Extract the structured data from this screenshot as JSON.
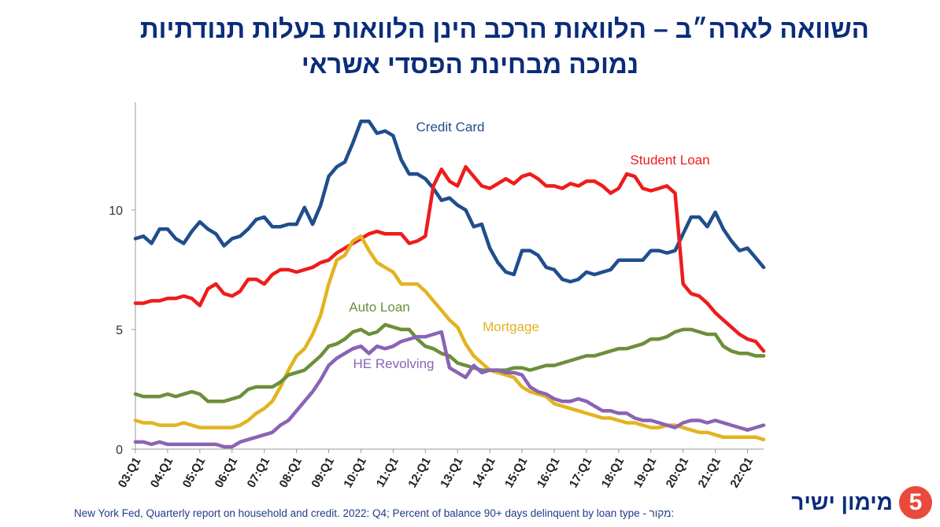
{
  "header": {
    "title_line1": "השוואה לארה״ב – הלוואות הרכב הינן הלוואות בעלות תנודתיות",
    "title_line2": "נמוכה מבחינת הפסדי אשראי"
  },
  "footer": {
    "source_text": "New York Fed, Quarterly report on household and credit. 2022: Q4; Percent of balance 90+ days delinquent by loan type - מקור:",
    "logo_text": "מימון ישיר",
    "logo_mark": "5"
  },
  "chart_data": {
    "type": "line",
    "x_start_year": 2003,
    "x_start_quarter": 1,
    "x_tick_labels": [
      "03:Q1",
      "04:Q1",
      "05:Q1",
      "06:Q1",
      "07:Q1",
      "08:Q1",
      "09:Q1",
      "10:Q1",
      "11:Q1",
      "12:Q1",
      "13:Q1",
      "14:Q1",
      "15:Q1",
      "16:Q1",
      "17:Q1",
      "18:Q1",
      "19:Q1",
      "20:Q1",
      "21:Q1",
      "22:Q1"
    ],
    "y_ticks": [
      0,
      5,
      10
    ],
    "ylim": [
      0,
      14.5
    ],
    "grid": false,
    "series": [
      {
        "name": "Credit Card",
        "color": "#1f4e8c",
        "values": [
          8.8,
          8.9,
          8.6,
          9.2,
          9.2,
          8.8,
          8.6,
          9.1,
          9.5,
          9.2,
          9.0,
          8.5,
          8.8,
          8.9,
          9.2,
          9.6,
          9.7,
          9.3,
          9.3,
          9.4,
          9.4,
          10.1,
          9.4,
          10.2,
          11.4,
          11.8,
          12.0,
          12.8,
          13.7,
          13.7,
          13.2,
          13.3,
          13.1,
          12.1,
          11.5,
          11.5,
          11.3,
          10.9,
          10.4,
          10.5,
          10.2,
          10.0,
          9.3,
          9.4,
          8.4,
          7.8,
          7.4,
          7.3,
          8.3,
          8.3,
          8.1,
          7.6,
          7.5,
          7.1,
          7.0,
          7.1,
          7.4,
          7.3,
          7.4,
          7.5,
          7.9,
          7.9,
          7.9,
          7.9,
          8.3,
          8.3,
          8.2,
          8.3,
          9.0,
          9.7,
          9.7,
          9.3,
          9.9,
          9.2,
          8.7,
          8.3,
          8.4,
          8.0,
          7.6
        ]
      },
      {
        "name": "Student Loan",
        "color": "#ee1c1c",
        "values": [
          6.1,
          6.1,
          6.2,
          6.2,
          6.3,
          6.3,
          6.4,
          6.3,
          6.0,
          6.7,
          6.9,
          6.5,
          6.4,
          6.6,
          7.1,
          7.1,
          6.9,
          7.3,
          7.5,
          7.5,
          7.4,
          7.5,
          7.6,
          7.8,
          7.9,
          8.2,
          8.4,
          8.6,
          8.8,
          9.0,
          9.1,
          9.0,
          9.0,
          9.0,
          8.6,
          8.7,
          8.9,
          11.0,
          11.7,
          11.2,
          11.0,
          11.8,
          11.4,
          11.0,
          10.9,
          11.1,
          11.3,
          11.1,
          11.4,
          11.5,
          11.3,
          11.0,
          11.0,
          10.9,
          11.1,
          11.0,
          11.2,
          11.2,
          11.0,
          10.7,
          10.9,
          11.5,
          11.4,
          10.9,
          10.8,
          10.9,
          11.0,
          10.7,
          6.9,
          6.5,
          6.4,
          6.1,
          5.7,
          5.4,
          5.1,
          4.8,
          4.6,
          4.5,
          4.1
        ]
      },
      {
        "name": "Mortgage",
        "color": "#e3b320",
        "values": [
          1.2,
          1.1,
          1.1,
          1.0,
          1.0,
          1.0,
          1.1,
          1.0,
          0.9,
          0.9,
          0.9,
          0.9,
          0.9,
          1.0,
          1.2,
          1.5,
          1.7,
          2.0,
          2.6,
          3.3,
          3.9,
          4.2,
          4.8,
          5.6,
          6.9,
          7.9,
          8.1,
          8.7,
          8.9,
          8.3,
          7.8,
          7.6,
          7.4,
          6.9,
          6.9,
          6.9,
          6.6,
          6.2,
          5.8,
          5.4,
          5.1,
          4.4,
          3.9,
          3.6,
          3.3,
          3.2,
          3.1,
          3.0,
          2.6,
          2.4,
          2.3,
          2.2,
          1.9,
          1.8,
          1.7,
          1.6,
          1.5,
          1.4,
          1.3,
          1.3,
          1.2,
          1.1,
          1.1,
          1.0,
          0.9,
          0.9,
          1.0,
          1.0,
          0.9,
          0.8,
          0.7,
          0.7,
          0.6,
          0.5,
          0.5,
          0.5,
          0.5,
          0.5,
          0.4
        ]
      },
      {
        "name": "Auto Loan",
        "color": "#6b8f3a",
        "values": [
          2.3,
          2.2,
          2.2,
          2.2,
          2.3,
          2.2,
          2.3,
          2.4,
          2.3,
          2.0,
          2.0,
          2.0,
          2.1,
          2.2,
          2.5,
          2.6,
          2.6,
          2.6,
          2.8,
          3.1,
          3.2,
          3.3,
          3.6,
          3.9,
          4.3,
          4.4,
          4.6,
          4.9,
          5.0,
          4.8,
          4.9,
          5.2,
          5.1,
          5.0,
          5.0,
          4.6,
          4.3,
          4.2,
          4.0,
          3.9,
          3.6,
          3.5,
          3.4,
          3.3,
          3.3,
          3.3,
          3.3,
          3.4,
          3.4,
          3.3,
          3.4,
          3.5,
          3.5,
          3.6,
          3.7,
          3.8,
          3.9,
          3.9,
          4.0,
          4.1,
          4.2,
          4.2,
          4.3,
          4.4,
          4.6,
          4.6,
          4.7,
          4.9,
          5.0,
          5.0,
          4.9,
          4.8,
          4.8,
          4.3,
          4.1,
          4.0,
          4.0,
          3.9,
          3.9
        ]
      },
      {
        "name": "HE Revolving",
        "color": "#8a63b5",
        "values": [
          0.3,
          0.3,
          0.2,
          0.3,
          0.2,
          0.2,
          0.2,
          0.2,
          0.2,
          0.2,
          0.2,
          0.1,
          0.1,
          0.3,
          0.4,
          0.5,
          0.6,
          0.7,
          1.0,
          1.2,
          1.6,
          2.0,
          2.4,
          2.9,
          3.5,
          3.8,
          4.0,
          4.2,
          4.3,
          4.0,
          4.3,
          4.2,
          4.3,
          4.5,
          4.6,
          4.7,
          4.7,
          4.8,
          4.9,
          3.4,
          3.2,
          3.0,
          3.5,
          3.2,
          3.3,
          3.3,
          3.2,
          3.2,
          3.1,
          2.6,
          2.4,
          2.3,
          2.1,
          2.0,
          2.0,
          2.1,
          2.0,
          1.8,
          1.6,
          1.6,
          1.5,
          1.5,
          1.3,
          1.2,
          1.2,
          1.1,
          1.0,
          0.9,
          1.1,
          1.2,
          1.2,
          1.1,
          1.2,
          1.1,
          1.0,
          0.9,
          0.8,
          0.9,
          1.0
        ]
      }
    ]
  }
}
